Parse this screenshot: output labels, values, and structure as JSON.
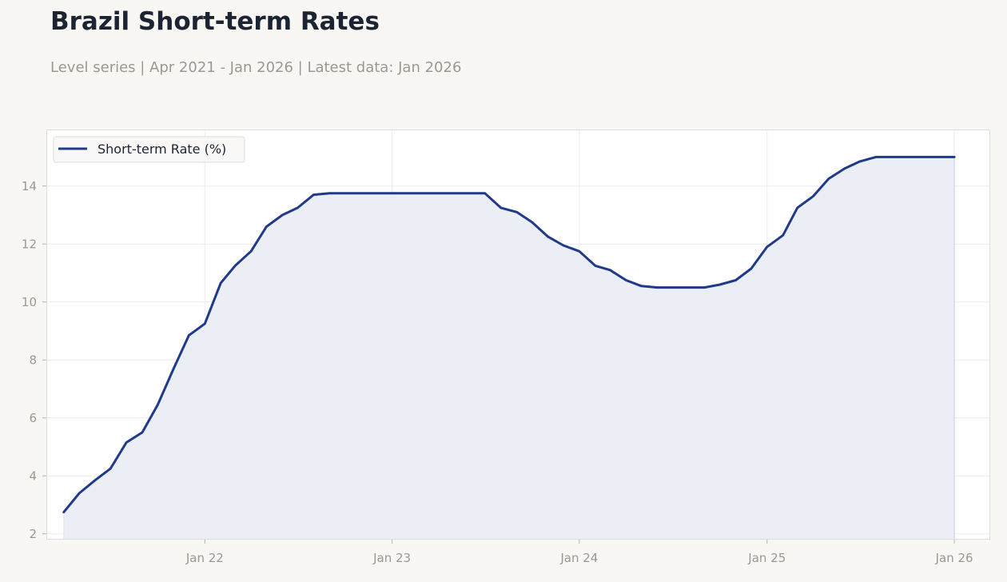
{
  "header": {
    "title": "Brazil Short-term Rates",
    "subtitle": "Level series | Apr 2021 - Jan 2026 | Latest data: Jan 2026"
  },
  "colors": {
    "line": "#1f3a8a",
    "fill": "#eceef5",
    "page_background": "#f8f7f4",
    "plot_background": "#ffffff",
    "grid": "#ececec",
    "frame": "#dddddd",
    "tick_text": "#9a9893",
    "legend_text": "#1c2433"
  },
  "chart_data": {
    "type": "area",
    "title": "",
    "xlabel": "",
    "ylabel": "",
    "grid": true,
    "legend": "top-left",
    "xlim": [
      "2021-02-26",
      "2026-03-12"
    ],
    "ylim": [
      1.8,
      15.95
    ],
    "x_ticks": [
      {
        "date": "2022-01-01",
        "label": "Jan 22"
      },
      {
        "date": "2023-01-01",
        "label": "Jan 23"
      },
      {
        "date": "2024-01-01",
        "label": "Jan 24"
      },
      {
        "date": "2025-01-01",
        "label": "Jan 25"
      },
      {
        "date": "2026-01-01",
        "label": "Jan 26"
      }
    ],
    "y_ticks": [
      2,
      4,
      6,
      8,
      10,
      12,
      14
    ],
    "series": [
      {
        "name": "Short-term Rate (%)",
        "x": [
          "2021-04",
          "2021-05",
          "2021-06",
          "2021-07",
          "2021-08",
          "2021-09",
          "2021-10",
          "2021-11",
          "2021-12",
          "2022-01",
          "2022-02",
          "2022-03",
          "2022-04",
          "2022-05",
          "2022-06",
          "2022-07",
          "2022-08",
          "2022-09",
          "2022-10",
          "2022-11",
          "2022-12",
          "2023-01",
          "2023-02",
          "2023-03",
          "2023-04",
          "2023-05",
          "2023-06",
          "2023-07",
          "2023-08",
          "2023-09",
          "2023-10",
          "2023-11",
          "2023-12",
          "2024-01",
          "2024-02",
          "2024-03",
          "2024-04",
          "2024-05",
          "2024-06",
          "2024-07",
          "2024-08",
          "2024-09",
          "2024-10",
          "2024-11",
          "2024-12",
          "2025-01",
          "2025-02",
          "2025-03",
          "2025-04",
          "2025-05",
          "2025-06",
          "2025-07",
          "2025-08",
          "2025-09",
          "2025-10",
          "2025-11",
          "2025-12",
          "2026-01"
        ],
        "values": [
          2.75,
          3.4,
          3.85,
          4.25,
          5.15,
          5.5,
          6.45,
          7.7,
          8.85,
          9.25,
          10.65,
          11.25,
          11.75,
          12.6,
          13.0,
          13.25,
          13.7,
          13.75,
          13.75,
          13.75,
          13.75,
          13.75,
          13.75,
          13.75,
          13.75,
          13.75,
          13.75,
          13.75,
          13.25,
          13.1,
          12.75,
          12.25,
          11.95,
          11.75,
          11.25,
          11.1,
          10.75,
          10.55,
          10.5,
          10.5,
          10.5,
          10.5,
          10.6,
          10.75,
          11.15,
          11.9,
          12.3,
          13.25,
          13.65,
          14.25,
          14.6,
          14.85,
          15.0,
          15.0,
          15.0,
          15.0,
          15.0,
          15.0
        ]
      }
    ]
  }
}
